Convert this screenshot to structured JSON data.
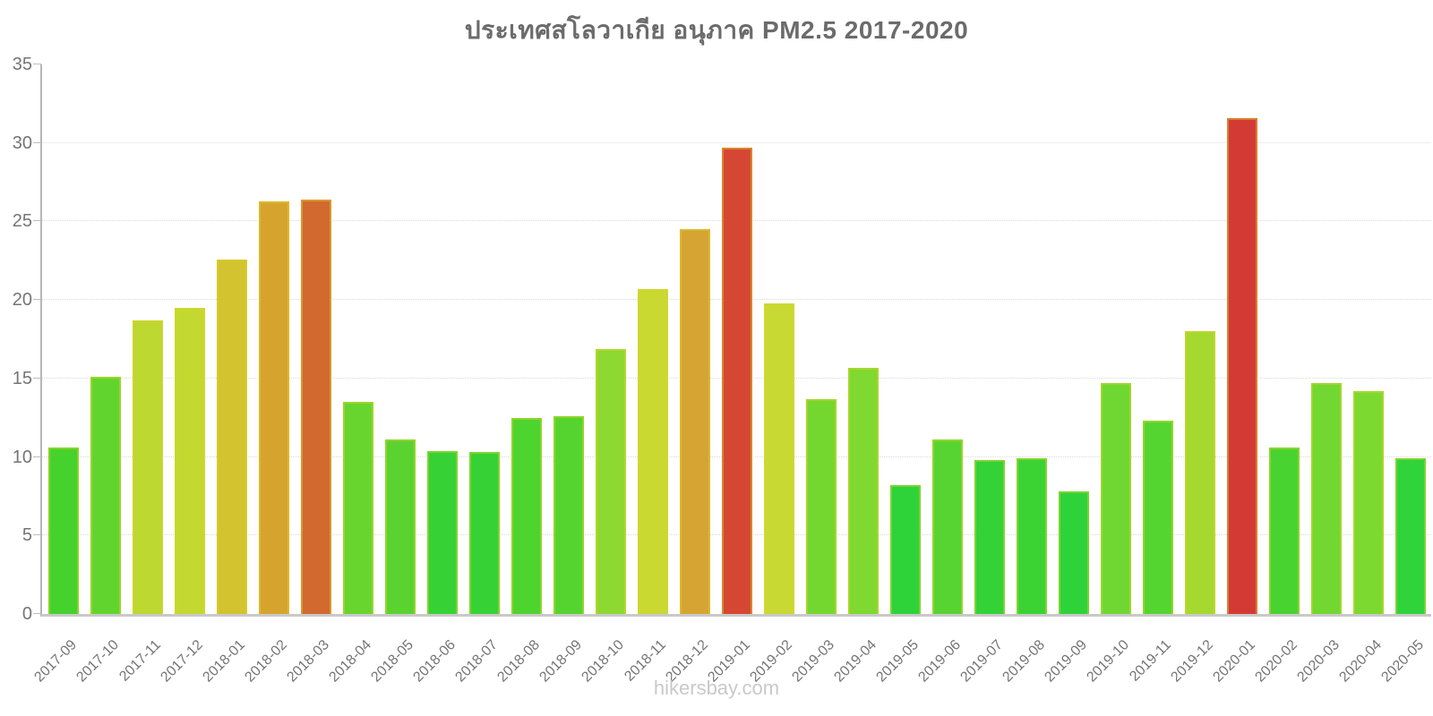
{
  "title": "ประเทศสโลวาเกีย อนุภาค PM2.5 2017-2020",
  "watermark": "hikersbay.com",
  "chart_data": {
    "type": "bar",
    "title": "ประเทศสโลวาเกีย อนุภาค PM2.5 2017-2020",
    "xlabel": "",
    "ylabel": "",
    "ylim": [
      0,
      35
    ],
    "yticks": [
      0,
      5,
      10,
      15,
      20,
      25,
      30,
      35
    ],
    "grid": "horizontal dotted every 5 units, legend none",
    "categories": [
      "2017-09",
      "2017-10",
      "2017-11",
      "2017-12",
      "2018-01",
      "2018-02",
      "2018-03",
      "2018-04",
      "2018-05",
      "2018-06",
      "2018-07",
      "2018-08",
      "2018-09",
      "2018-10",
      "2018-11",
      "2018-12",
      "2019-01",
      "2019-02",
      "2019-03",
      "2019-04",
      "2019-05",
      "2019-06",
      "2019-07",
      "2019-08",
      "2019-09",
      "2019-10",
      "2019-11",
      "2019-12",
      "2020-01",
      "2020-02",
      "2020-03",
      "2020-04",
      "2020-05"
    ],
    "values": [
      10.6,
      15.1,
      18.7,
      19.5,
      22.6,
      26.3,
      26.4,
      13.5,
      11.1,
      10.4,
      10.3,
      12.5,
      12.6,
      16.9,
      20.7,
      24.5,
      29.7,
      19.8,
      13.7,
      15.7,
      8.2,
      11.1,
      9.8,
      9.9,
      7.8,
      14.7,
      12.3,
      18.0,
      31.6,
      10.6,
      14.7,
      14.2,
      9.9
    ],
    "colors": [
      "#45d22d",
      "#62d42e",
      "#bcd831",
      "#c3d92f",
      "#d2c32f",
      "#d6a42e",
      "#d2692f",
      "#68d52f",
      "#5ad331",
      "#36d235",
      "#36d235",
      "#4ed42f",
      "#55d42f",
      "#8ed832",
      "#c9d932",
      "#d5a433",
      "#d54733",
      "#c9d934",
      "#74d72f",
      "#7fd930",
      "#2ed33a",
      "#57d431",
      "#33d236",
      "#3bd334",
      "#2ed33a",
      "#6fd732",
      "#55d530",
      "#a5d92f",
      "#d43a34",
      "#48d331",
      "#72d731",
      "#7cd930",
      "#2fd33a"
    ]
  }
}
